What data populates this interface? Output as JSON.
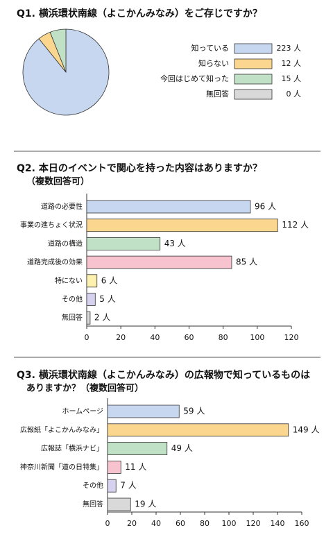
{
  "chart_data": [
    {
      "type": "pie",
      "title": "Q1. 横浜環状南線（よこかんみなみ）をご存じですか？",
      "categories": [
        "知っている",
        "知らない",
        "今回はじめて知った",
        "無回答"
      ],
      "values": [
        223,
        12,
        15,
        0
      ],
      "value_labels": [
        "223 人",
        "12 人",
        "15 人",
        "0 人"
      ],
      "colors": [
        "#c6d7ef",
        "#fbd68f",
        "#c0e1c6",
        "#d9d9d9"
      ]
    },
    {
      "type": "bar",
      "title": "Q2. 本日のイベントで関心を持った内容はありますか？",
      "subtitle": "（複数回答可）",
      "categories": [
        "道路の必要性",
        "事業の進ちょく状況",
        "道路の構造",
        "道路完成後の効果",
        "特にない",
        "その他",
        "無回答"
      ],
      "values": [
        96,
        112,
        43,
        85,
        6,
        5,
        2
      ],
      "value_labels": [
        "96 人",
        "112 人",
        "43 人",
        "85 人",
        "6 人",
        "5 人",
        "2 人"
      ],
      "colors": [
        "#c6d7ef",
        "#fbd68f",
        "#c0e1c6",
        "#f7c3cf",
        "#fdf1b0",
        "#d5d1ee",
        "#d9d9d9"
      ],
      "xlim": [
        0,
        120
      ],
      "xticks": [
        0,
        20,
        40,
        60,
        80,
        100,
        120
      ]
    },
    {
      "type": "bar",
      "title": "Q3. 横浜環状南線（よこかんみなみ）の広報物で知っているものは",
      "subtitle": "ありますか？（複数回答可）",
      "categories": [
        "ホームページ",
        "広報紙「よこかんみなみ」",
        "広報誌「横浜ナビ」",
        "神奈川新聞「道の日特集」",
        "その他",
        "無回答"
      ],
      "values": [
        59,
        149,
        49,
        11,
        7,
        19
      ],
      "value_labels": [
        "59 人",
        "149 人",
        "49 人",
        "11 人",
        "7 人",
        "19 人"
      ],
      "colors": [
        "#c6d7ef",
        "#fbd68f",
        "#c0e1c6",
        "#f7c3cf",
        "#d5d1ee",
        "#d9d9d9"
      ],
      "xlim": [
        0,
        160
      ],
      "xticks": [
        0,
        20,
        40,
        60,
        80,
        100,
        120,
        140,
        160
      ]
    }
  ]
}
